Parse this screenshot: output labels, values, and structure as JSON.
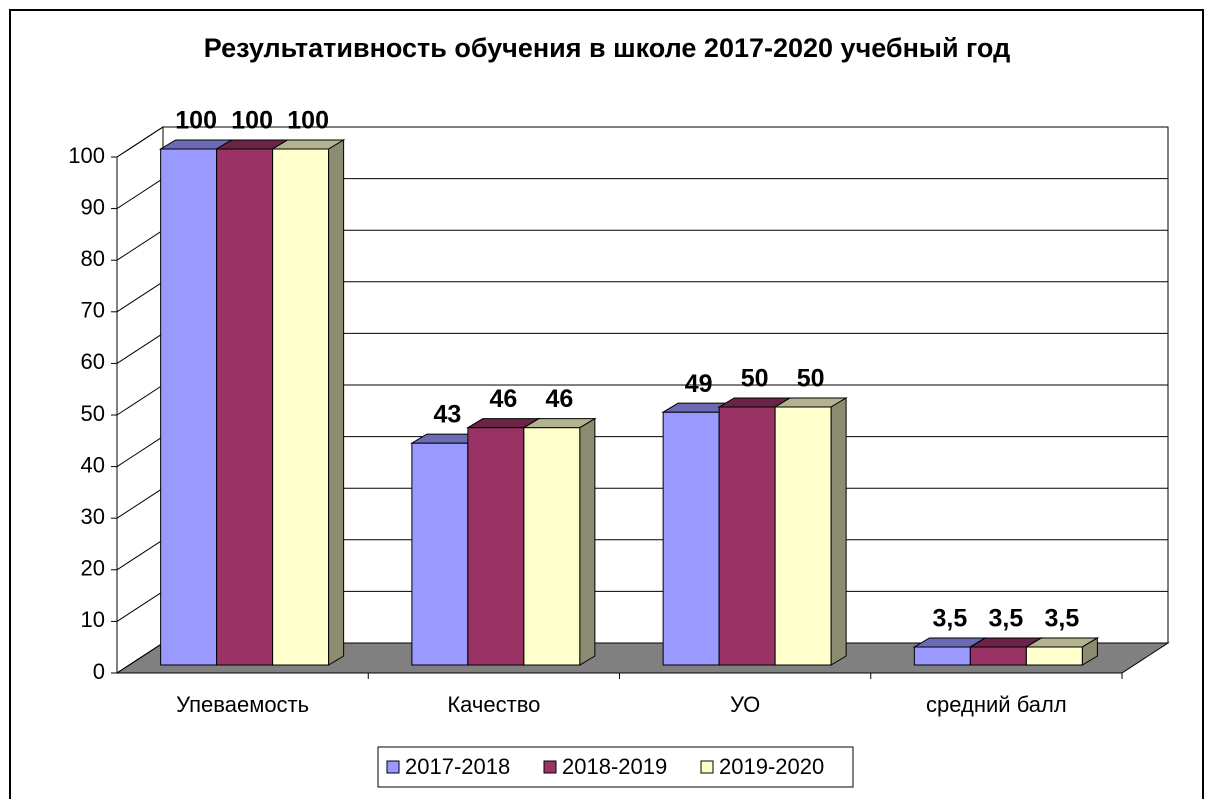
{
  "chart_data": {
    "type": "bar3d",
    "title": "Результативность обучения в школе 2017-2020 учебный год",
    "categories": [
      "Упеваемость",
      "Качество",
      "УО",
      "средний балл"
    ],
    "series": [
      {
        "name": "2017-2018",
        "color": "#9999ff",
        "values": [
          100,
          43,
          49,
          3.5
        ],
        "value_labels": [
          "100",
          "43",
          "49",
          "3,5"
        ]
      },
      {
        "name": "2018-2019",
        "color": "#993366",
        "values": [
          100,
          46,
          50,
          3.5
        ],
        "value_labels": [
          "100",
          "46",
          "50",
          "3,5"
        ]
      },
      {
        "name": "2019-2020",
        "color": "#ffffcc",
        "values": [
          100,
          46,
          50,
          3.5
        ],
        "value_labels": [
          "100",
          "46",
          "50",
          "3,5"
        ]
      }
    ],
    "ylim": [
      0,
      100
    ],
    "yticks": [
      0,
      10,
      20,
      30,
      40,
      50,
      60,
      70,
      80,
      90,
      100
    ],
    "grid": true,
    "legend": "bottom"
  }
}
